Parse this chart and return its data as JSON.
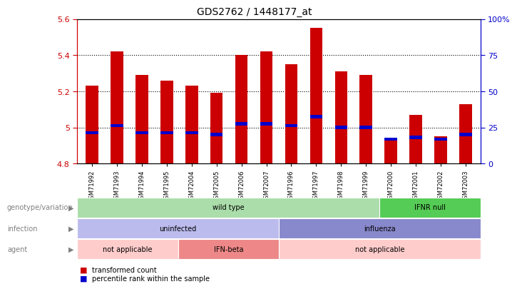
{
  "title": "GDS2762 / 1448177_at",
  "samples": [
    "GSM71992",
    "GSM71993",
    "GSM71994",
    "GSM71995",
    "GSM72004",
    "GSM72005",
    "GSM72006",
    "GSM72007",
    "GSM71996",
    "GSM71997",
    "GSM71998",
    "GSM71999",
    "GSM72000",
    "GSM72001",
    "GSM72002",
    "GSM72003"
  ],
  "bar_values": [
    5.23,
    5.42,
    5.29,
    5.26,
    5.23,
    5.19,
    5.4,
    5.42,
    5.35,
    5.55,
    5.31,
    5.29,
    4.94,
    5.07,
    4.95,
    5.13
  ],
  "percentile_values": [
    4.97,
    5.01,
    4.97,
    4.97,
    4.97,
    4.96,
    5.02,
    5.02,
    5.01,
    5.06,
    5.0,
    5.0,
    4.935,
    4.945,
    4.935,
    4.96
  ],
  "bar_bottom": 4.8,
  "ylim_min": 4.8,
  "ylim_max": 5.6,
  "bar_color": "#cc0000",
  "percentile_color": "#0000cc",
  "plot_bg": "#ffffff",
  "right_ypositions": [
    4.8,
    5.0,
    5.2,
    5.4,
    5.6
  ],
  "right_ylabels": [
    "0",
    "25",
    "50",
    "75",
    "100%"
  ],
  "annotation_rows": [
    {
      "label": "genotype/variation",
      "segments": [
        {
          "text": "wild type",
          "start": 0,
          "end": 11,
          "color": "#aaddaa"
        },
        {
          "text": "IFNR null",
          "start": 12,
          "end": 15,
          "color": "#55cc55"
        }
      ]
    },
    {
      "label": "infection",
      "segments": [
        {
          "text": "uninfected",
          "start": 0,
          "end": 7,
          "color": "#bbbbee"
        },
        {
          "text": "influenza",
          "start": 8,
          "end": 15,
          "color": "#8888cc"
        }
      ]
    },
    {
      "label": "agent",
      "segments": [
        {
          "text": "not applicable",
          "start": 0,
          "end": 3,
          "color": "#ffcccc"
        },
        {
          "text": "IFN-beta",
          "start": 4,
          "end": 7,
          "color": "#ee8888"
        },
        {
          "text": "not applicable",
          "start": 8,
          "end": 15,
          "color": "#ffcccc"
        }
      ]
    }
  ],
  "legend_items": [
    {
      "color": "#cc0000",
      "label": "transformed count"
    },
    {
      "color": "#0000cc",
      "label": "percentile rank within the sample"
    }
  ]
}
